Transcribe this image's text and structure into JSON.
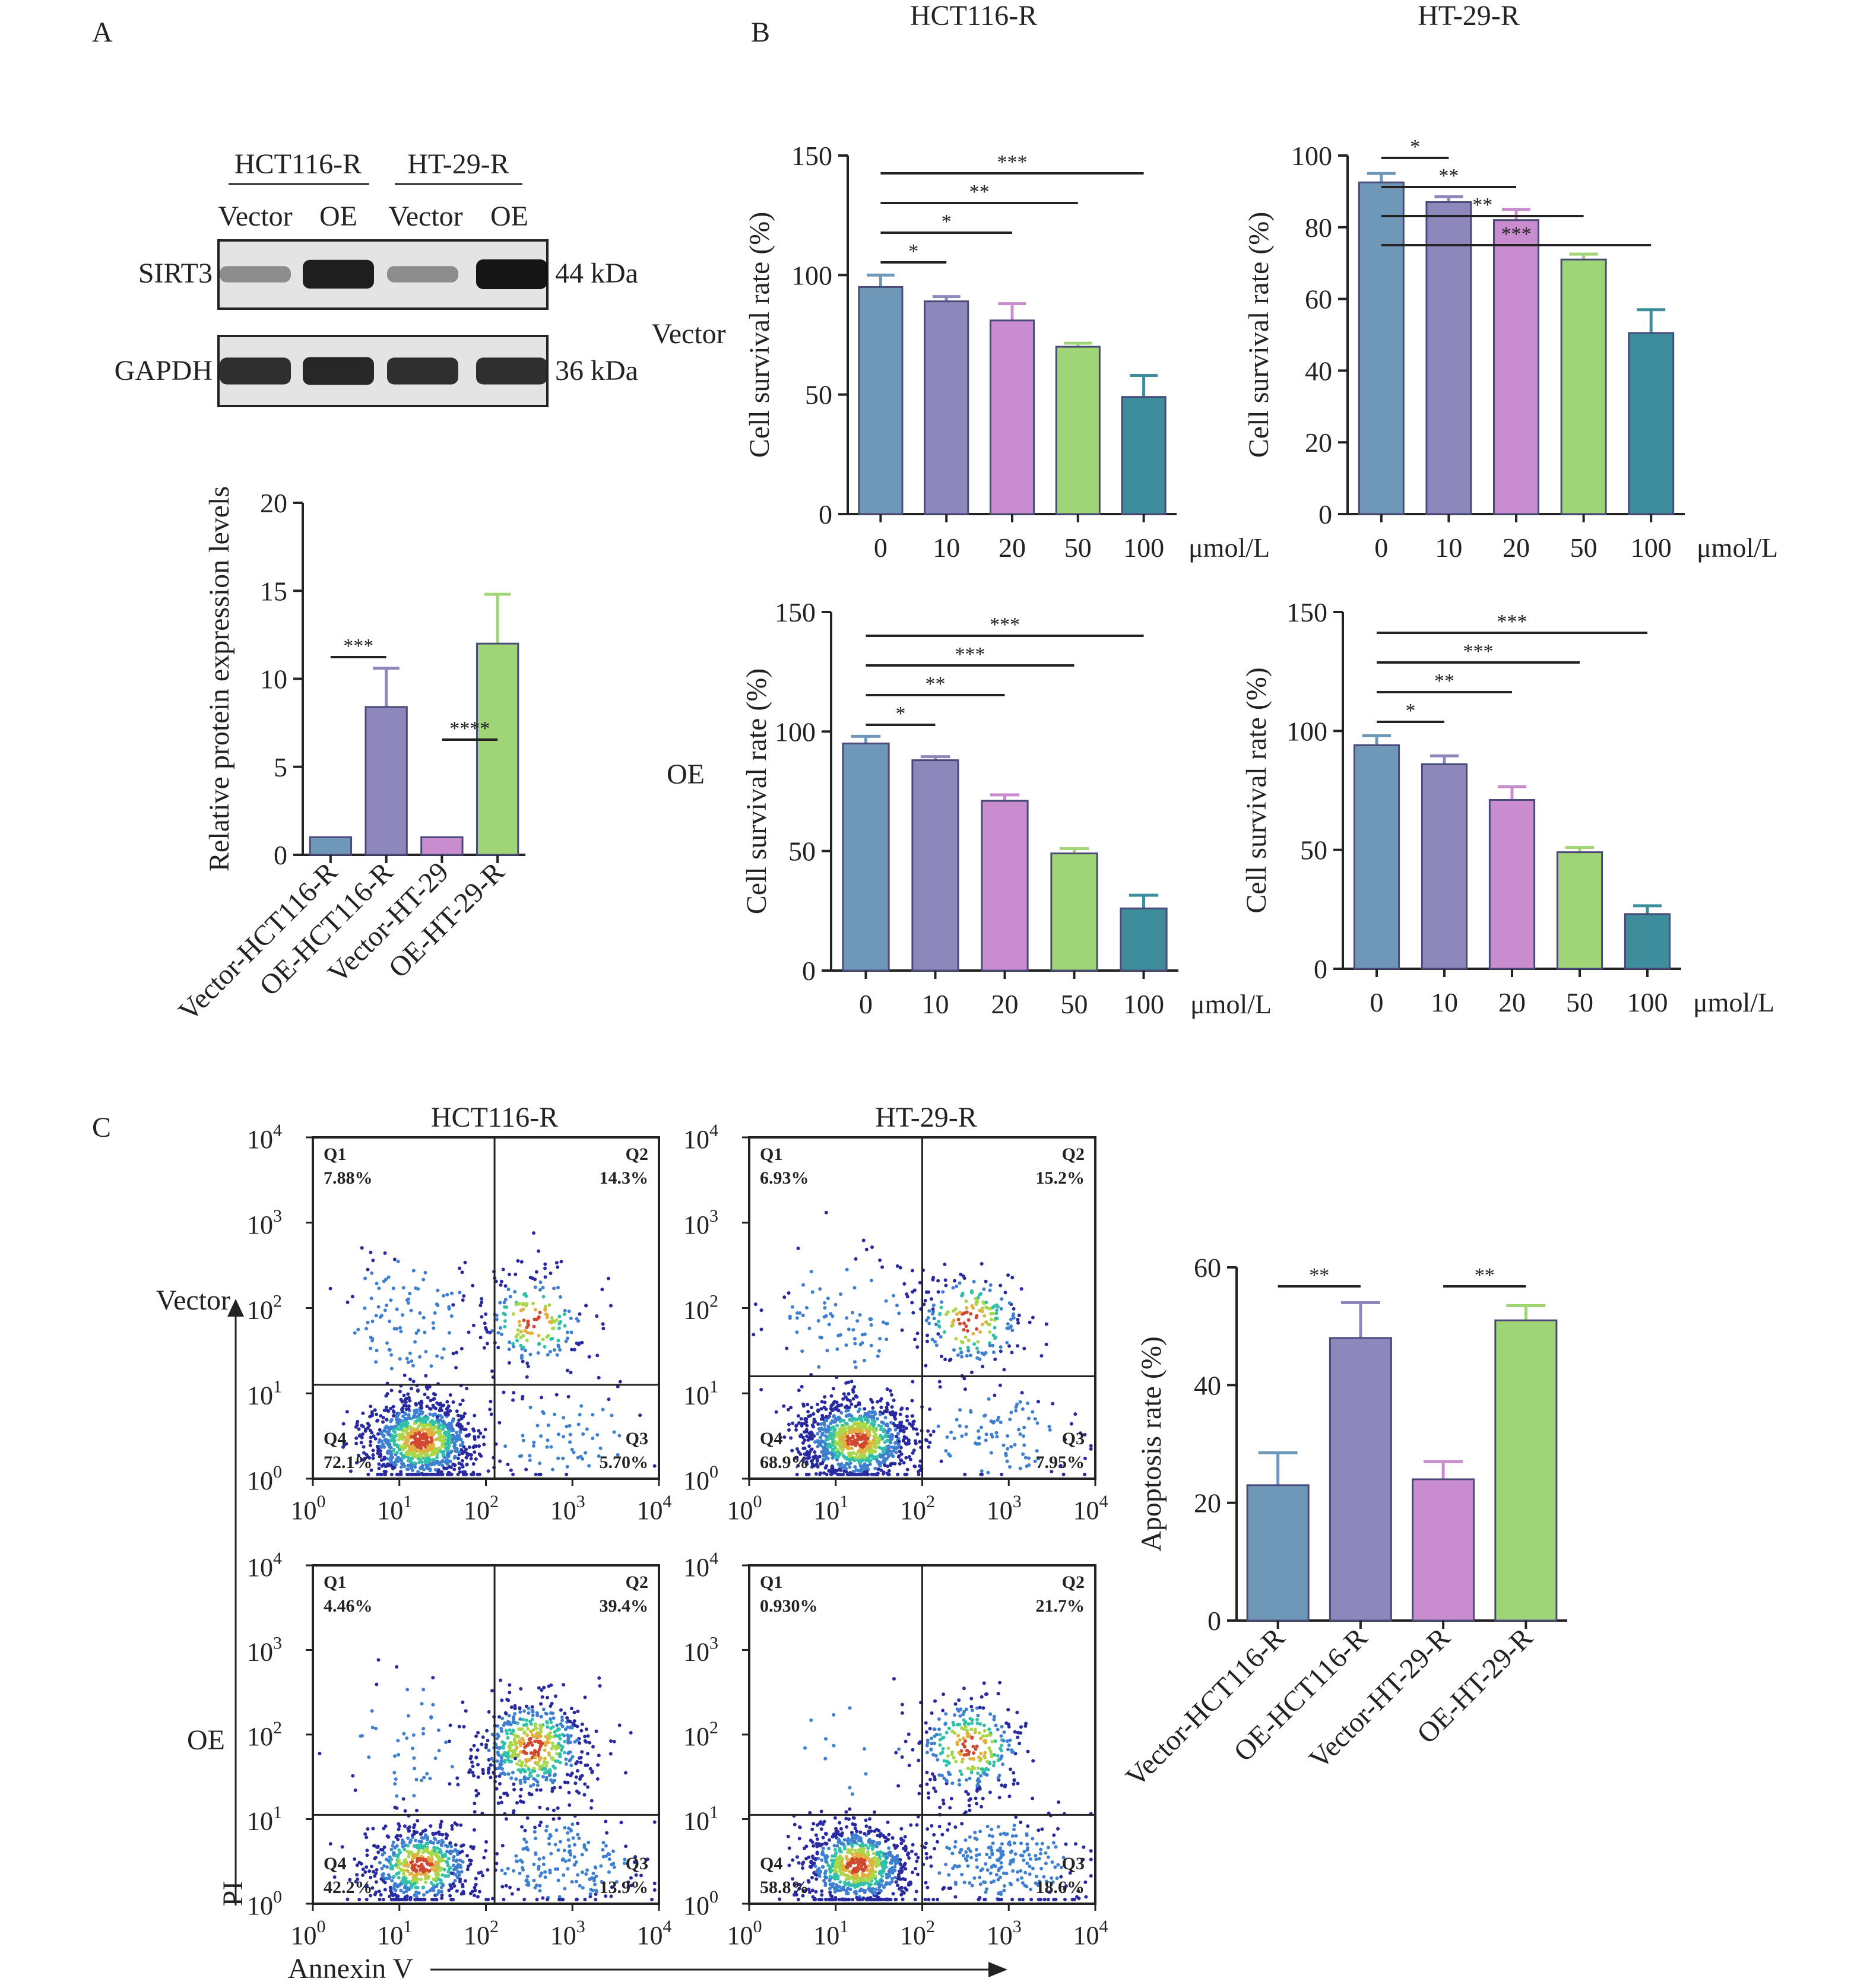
{
  "panel_labels": {
    "a": "A",
    "b": "B",
    "c": "C"
  },
  "colors": {
    "vector_hct": "#6f97b8",
    "oe_hct": "#8d87bb",
    "vector_ht": "#c98ccf",
    "oe_ht": "#9fd576",
    "dose100": "#3e8d9c",
    "axis": "#222222",
    "blot_bg": "#e4e4e4",
    "dot_density_scale": [
      "#2a2aa0",
      "#3f7fd0",
      "#33c0a8",
      "#a8d84a",
      "#e0b040",
      "#d04830"
    ]
  },
  "western_blot": {
    "group_labels": [
      "HCT116-R",
      "HT-29-R"
    ],
    "lane_labels": [
      "Vector",
      "OE",
      "Vector",
      "OE"
    ],
    "rows": [
      {
        "protein": "SIRT3",
        "size": "44 kDa",
        "band_intensity": [
          0.3,
          0.95,
          0.3,
          1.0
        ]
      },
      {
        "protein": "GAPDH",
        "size": "36 kDa",
        "band_intensity": [
          0.85,
          0.9,
          0.85,
          0.85
        ]
      }
    ]
  },
  "row_labels": {
    "vector": "Vector",
    "oe": "OE"
  },
  "unit_label": "μmol/L",
  "flow_labels": {
    "x_axis": "Annexin V",
    "y_axis": "PI",
    "titles": [
      "HCT116-R",
      "HT-29-R"
    ]
  },
  "chart_data": [
    {
      "id": "A-protein",
      "type": "bar",
      "categories": [
        "Vector-HCT116-R",
        "OE-HCT116-R",
        "Vector-HT-29",
        "OE-HT-29-R"
      ],
      "values": [
        1,
        8.4,
        1,
        12
      ],
      "errors": [
        0,
        2.2,
        0,
        2.8
      ],
      "colors": [
        "#6f97b8",
        "#8d87bb",
        "#c98ccf",
        "#9fd576"
      ],
      "ylabel": "Relative protein expression levels",
      "ylim": [
        0,
        20
      ],
      "yticks": [
        "0",
        "5",
        "10",
        "15",
        "20"
      ],
      "significance": [
        {
          "from": 0,
          "to": 1,
          "label": "***"
        },
        {
          "from": 2,
          "to": 3,
          "label": "****"
        }
      ]
    },
    {
      "id": "B-HCT116-R-Vector",
      "type": "bar",
      "title": "HCT116-R",
      "categories": [
        "0",
        "10",
        "20",
        "50",
        "100"
      ],
      "values": [
        95,
        89,
        81,
        70,
        49
      ],
      "errors": [
        5,
        2,
        7,
        1.5,
        9
      ],
      "ylabel": "Cell survival rate (%)",
      "ylim": [
        0,
        150
      ],
      "yticks": [
        "0",
        "50",
        "100",
        "150"
      ],
      "significance": [
        {
          "from": 0,
          "to": 1,
          "label": "*"
        },
        {
          "from": 0,
          "to": 2,
          "label": "*"
        },
        {
          "from": 0,
          "to": 3,
          "label": "**"
        },
        {
          "from": 0,
          "to": 4,
          "label": "***"
        }
      ]
    },
    {
      "id": "B-HT-29-R-Vector",
      "type": "bar",
      "title": "HT-29-R",
      "categories": [
        "0",
        "10",
        "20",
        "50",
        "100"
      ],
      "values": [
        92.5,
        87,
        82,
        71,
        50.5
      ],
      "errors": [
        2.5,
        1.5,
        3,
        1.5,
        6.5
      ],
      "ylabel": "Cell survival rate (%)",
      "ylim": [
        0,
        100
      ],
      "yticks": [
        "0",
        "20",
        "40",
        "60",
        "80",
        "100"
      ],
      "significance": [
        {
          "from": 0,
          "to": 1,
          "label": "*"
        },
        {
          "from": 0,
          "to": 2,
          "label": "**"
        },
        {
          "from": 0,
          "to": 3,
          "label": "**"
        },
        {
          "from": 0,
          "to": 4,
          "label": "***"
        }
      ]
    },
    {
      "id": "B-HCT116-R-OE",
      "type": "bar",
      "categories": [
        "0",
        "10",
        "20",
        "50",
        "100"
      ],
      "values": [
        95,
        88,
        71,
        49,
        26
      ],
      "errors": [
        3,
        1.5,
        2.5,
        2,
        5.5
      ],
      "ylabel": "Cell survival rate (%)",
      "ylim": [
        0,
        150
      ],
      "yticks": [
        "0",
        "50",
        "100",
        "150"
      ],
      "significance": [
        {
          "from": 0,
          "to": 1,
          "label": "*"
        },
        {
          "from": 0,
          "to": 2,
          "label": "**"
        },
        {
          "from": 0,
          "to": 3,
          "label": "***"
        },
        {
          "from": 0,
          "to": 4,
          "label": "***"
        }
      ]
    },
    {
      "id": "B-HT-29-R-OE",
      "type": "bar",
      "categories": [
        "0",
        "10",
        "20",
        "50",
        "100"
      ],
      "values": [
        94,
        86,
        71,
        49,
        23
      ],
      "errors": [
        4,
        3.5,
        5.5,
        2,
        3.5
      ],
      "ylabel": "Cell survival rate (%)",
      "ylim": [
        0,
        150
      ],
      "yticks": [
        "0",
        "50",
        "100",
        "150"
      ],
      "significance": [
        {
          "from": 0,
          "to": 1,
          "label": "*"
        },
        {
          "from": 0,
          "to": 2,
          "label": "**"
        },
        {
          "from": 0,
          "to": 3,
          "label": "***"
        },
        {
          "from": 0,
          "to": 4,
          "label": "***"
        }
      ]
    },
    {
      "id": "C-apoptosis",
      "type": "bar",
      "categories": [
        "Vector-HCT116-R",
        "OE-HCT116-R",
        "Vector-HT-29-R",
        "OE-HT-29-R"
      ],
      "values": [
        23,
        48,
        24,
        51
      ],
      "errors": [
        5.5,
        6,
        3,
        2.5
      ],
      "colors": [
        "#6f97b8",
        "#8d87bb",
        "#c98ccf",
        "#9fd576"
      ],
      "ylabel": "Apoptosis rate (%)",
      "ylim": [
        0,
        60
      ],
      "yticks": [
        "0",
        "20",
        "40",
        "60"
      ],
      "significance": [
        {
          "from": 0,
          "to": 1,
          "label": "**"
        },
        {
          "from": 2,
          "to": 3,
          "label": "**"
        }
      ]
    },
    {
      "id": "C-flow",
      "type": "scatter",
      "xlabel": "Annexin V",
      "ylabel": "PI",
      "axis_scale": "log",
      "xticks": [
        "10^0",
        "10^1",
        "10^2",
        "10^3",
        "10^4"
      ],
      "yticks": [
        "10^0",
        "10^1",
        "10^2",
        "10^3",
        "10^4"
      ],
      "plots": [
        {
          "cell": "HCT116-R",
          "group": "Vector",
          "gate_x": 2.1,
          "gate_y": 1.1,
          "quadrants": {
            "Q1": "7.88%",
            "Q2": "14.3%",
            "Q3": "5.70%",
            "Q4": "72.1%"
          }
        },
        {
          "cell": "HT-29-R",
          "group": "Vector",
          "gate_x": 2.0,
          "gate_y": 1.2,
          "quadrants": {
            "Q1": "6.93%",
            "Q2": "15.2%",
            "Q3": "7.95%",
            "Q4": "68.9%"
          }
        },
        {
          "cell": "HCT116-R",
          "group": "OE",
          "gate_x": 2.1,
          "gate_y": 1.05,
          "quadrants": {
            "Q1": "4.46%",
            "Q2": "39.4%",
            "Q3": "13.9%",
            "Q4": "42.2%"
          }
        },
        {
          "cell": "HT-29-R",
          "group": "OE",
          "gate_x": 2.0,
          "gate_y": 1.05,
          "quadrants": {
            "Q1": "0.930%",
            "Q2": "21.7%",
            "Q3": "18.6%",
            "Q4": "58.8%"
          }
        }
      ]
    }
  ]
}
